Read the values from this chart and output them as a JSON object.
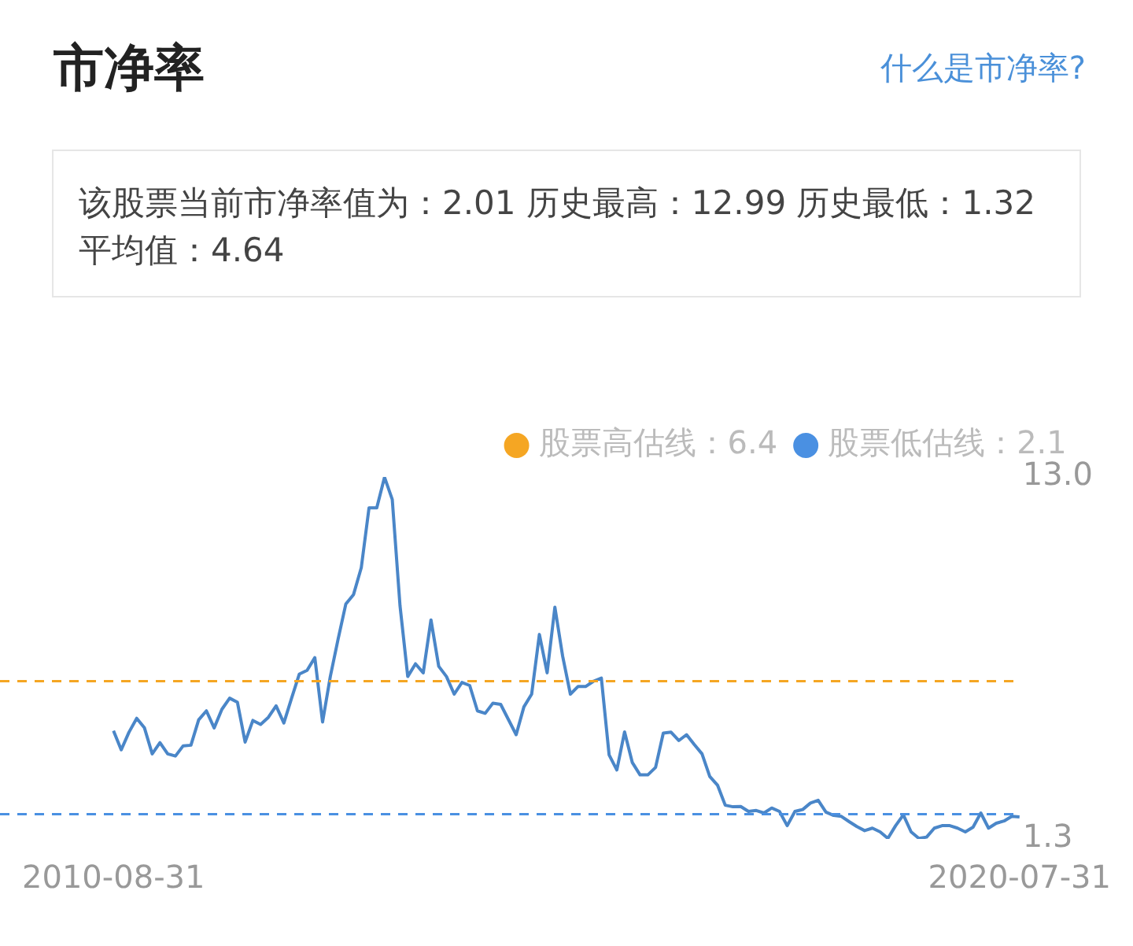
{
  "chart_data": {
    "type": "line",
    "title": "市净率",
    "subtitle": "该股票当前市净率值为：2.01 历史最高：12.99 历史最低：1.32 平均值：4.64",
    "annotations": [
      "什么是市净率?"
    ],
    "categories": [
      "2010-08-31",
      null,
      null,
      null,
      null,
      null,
      null,
      null,
      null,
      null,
      null,
      null,
      null,
      null,
      null,
      null,
      null,
      null,
      null,
      null,
      null,
      null,
      null,
      null,
      null,
      null,
      null,
      null,
      null,
      null,
      null,
      null,
      null,
      null,
      null,
      null,
      null,
      null,
      null,
      null,
      null,
      null,
      null,
      null,
      null,
      null,
      null,
      null,
      null,
      null,
      null,
      null,
      null,
      null,
      null,
      null,
      null,
      null,
      null,
      null,
      null,
      null,
      null,
      null,
      null,
      null,
      null,
      null,
      null,
      null,
      null,
      null,
      null,
      null,
      null,
      null,
      null,
      null,
      null,
      null,
      null,
      null,
      null,
      null,
      null,
      null,
      null,
      null,
      null,
      null,
      null,
      null,
      null,
      null,
      null,
      null,
      null,
      null,
      null,
      null,
      null,
      null,
      null,
      null,
      null,
      null,
      null,
      null,
      null,
      null,
      null,
      null,
      null,
      null,
      null,
      null,
      null,
      "2020-07-31"
    ],
    "series": [
      {
        "color": "#4a86c8",
        "values": [
          4.8,
          4.18,
          4.75,
          5.2,
          4.89,
          4.05,
          4.41,
          4.05,
          3.98,
          4.31,
          4.33,
          5.15,
          5.44,
          4.89,
          5.49,
          5.85,
          5.72,
          4.43,
          5.13,
          5.0,
          5.23,
          5.6,
          5.05,
          5.85,
          6.63,
          6.75,
          7.16,
          5.08,
          6.55,
          7.75,
          8.89,
          9.2,
          10.07,
          12.0,
          12.0,
          12.99,
          12.27,
          8.84,
          6.55,
          6.96,
          6.67,
          8.38,
          6.88,
          6.55,
          5.98,
          6.36,
          6.26,
          5.44,
          5.36,
          5.69,
          5.65,
          5.16,
          4.67,
          5.57,
          5.98,
          7.91,
          6.67,
          8.79,
          7.21,
          5.98,
          6.23,
          6.23,
          6.4,
          6.5,
          4.02,
          3.53,
          4.76,
          3.77,
          3.37,
          3.37,
          3.61,
          4.72,
          4.75,
          4.48,
          4.67,
          4.35,
          4.05,
          3.32,
          3.04,
          2.39,
          2.34,
          2.35,
          2.19,
          2.22,
          2.14,
          2.3,
          2.19,
          1.73,
          2.19,
          2.25,
          2.46,
          2.55,
          2.17,
          2.06,
          2.03,
          1.86,
          1.7,
          1.57,
          1.65,
          1.53,
          1.32,
          1.73,
          2.08,
          1.53,
          1.32,
          1.36,
          1.65,
          1.73,
          1.73,
          1.65,
          1.53,
          1.68,
          2.14,
          1.65,
          1.81,
          1.88,
          2.03,
          2.01
        ]
      }
    ],
    "ylim": [
      1.3,
      13.0
    ],
    "yticks": [
      {
        "value": 13.0,
        "label": "13.0"
      },
      {
        "value": 1.3,
        "label": "1.3"
      }
    ],
    "ref_lines": [
      {
        "axis": "y",
        "value": 6.4,
        "label": "股票高估线：6.4",
        "color": "#f5a623",
        "line_style": "dashed"
      },
      {
        "axis": "y",
        "value": 2.1,
        "label": "股票低估线：2.1",
        "color": "#4a90e2",
        "line_style": "dashed"
      }
    ],
    "grid": false,
    "legend": "top right",
    "marker": "none",
    "line_style": "solid"
  }
}
